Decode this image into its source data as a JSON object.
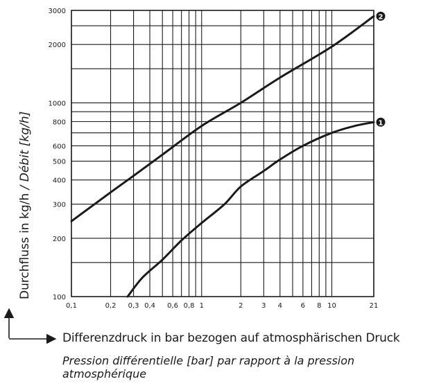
{
  "chart_data": {
    "type": "line",
    "x_scale": "log",
    "y_scale": "log",
    "xlim": [
      0.1,
      21
    ],
    "ylim": [
      100,
      3000
    ],
    "x_tick_labels": [
      {
        "value": 0.1,
        "label": "0,1"
      },
      {
        "value": 0.2,
        "label": "0,2"
      },
      {
        "value": 0.3,
        "label": "0,3"
      },
      {
        "value": 0.4,
        "label": "0,4"
      },
      {
        "value": 0.6,
        "label": "0,6"
      },
      {
        "value": 0.8,
        "label": "0,8"
      },
      {
        "value": 1,
        "label": "1"
      },
      {
        "value": 2,
        "label": "2"
      },
      {
        "value": 3,
        "label": "3"
      },
      {
        "value": 4,
        "label": "4"
      },
      {
        "value": 6,
        "label": "6"
      },
      {
        "value": 8,
        "label": "8"
      },
      {
        "value": 10,
        "label": "10"
      },
      {
        "value": 21,
        "label": "21"
      }
    ],
    "x_gridlines": [
      0.1,
      0.2,
      0.3,
      0.4,
      0.5,
      0.6,
      0.7,
      0.8,
      0.9,
      1,
      2,
      3,
      4,
      5,
      6,
      7,
      8,
      9,
      10,
      21
    ],
    "y_tick_labels": [
      {
        "value": 100,
        "label": "100"
      },
      {
        "value": 200,
        "label": "200"
      },
      {
        "value": 300,
        "label": "300"
      },
      {
        "value": 400,
        "label": "400"
      },
      {
        "value": 500,
        "label": "500"
      },
      {
        "value": 600,
        "label": "600"
      },
      {
        "value": 800,
        "label": "800"
      },
      {
        "value": 1000,
        "label": "1000"
      },
      {
        "value": 2000,
        "label": "2000"
      },
      {
        "value": 3000,
        "label": "3000"
      }
    ],
    "y_gridlines": [
      100,
      150,
      200,
      300,
      400,
      500,
      600,
      700,
      800,
      900,
      1000,
      1500,
      2000,
      2500,
      3000
    ],
    "series": [
      {
        "marker": "2",
        "x": [
          0.1,
          0.2,
          0.3,
          0.5,
          1,
          2,
          4,
          10,
          21
        ],
        "y": [
          245,
          345,
          420,
          540,
          760,
          1000,
          1350,
          1950,
          2800
        ]
      },
      {
        "marker": "1",
        "x": [
          0.27,
          0.35,
          0.5,
          0.7,
          1,
          1.5,
          2,
          3,
          4,
          6,
          10,
          15,
          21
        ],
        "y": [
          100,
          125,
          155,
          195,
          240,
          300,
          370,
          445,
          510,
          600,
          700,
          760,
          795
        ]
      }
    ],
    "line_color": "#1a1a1a",
    "ylabel": "Durchfluss in kg/h",
    "ylabel_italic": " / Débit [kg/h]",
    "xlabel": "Differenzdruck in bar bezogen auf atmosphärischen Druck",
    "xlabel_italic": "Pression différentielle [bar] par rapport à la pression atmosphérique"
  }
}
